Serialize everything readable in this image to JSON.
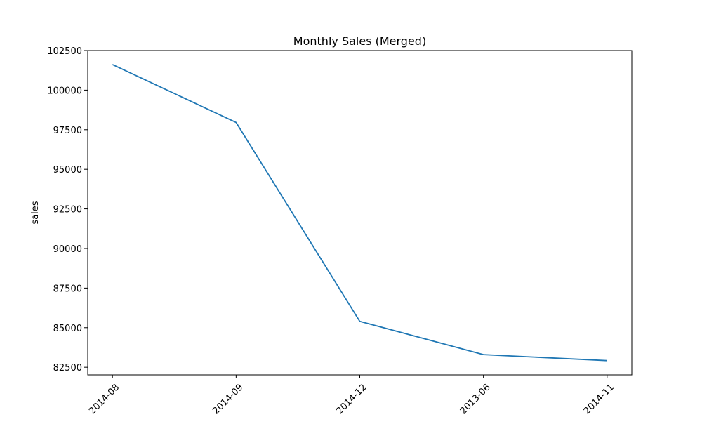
{
  "chart_data": {
    "type": "line",
    "title": "Monthly Sales (Merged)",
    "xlabel": "",
    "ylabel": "sales",
    "categories": [
      "2014-08",
      "2014-09",
      "2014-12",
      "2013-06",
      "2014-11"
    ],
    "series": [
      {
        "values": [
          101620,
          97960,
          85400,
          83300,
          82920
        ],
        "color": "#1f77b4"
      }
    ],
    "ylim": [
      82020,
      102500
    ],
    "yticks": [
      82500,
      85000,
      87500,
      90000,
      92500,
      95000,
      97500,
      100000,
      102500
    ],
    "ytick_labels": [
      "82500",
      "85000",
      "87500",
      "90000",
      "92500",
      "95000",
      "97500",
      "100000",
      "102500"
    ],
    "x_tick_rotation": "45 degrees",
    "grid": false,
    "legend": "none"
  }
}
